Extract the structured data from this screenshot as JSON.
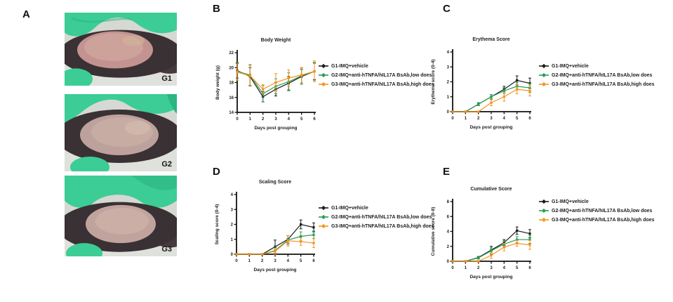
{
  "panels": {
    "a": "A",
    "b": "B",
    "c": "C",
    "d": "D",
    "e": "E"
  },
  "panelA": {
    "photos": [
      {
        "label": "G1",
        "skin": "#c29390",
        "skin_light": "#cfa49e"
      },
      {
        "label": "G2",
        "skin": "#bda19c",
        "skin_light": "#c9aea6"
      },
      {
        "label": "G3",
        "skin": "#c1a39d",
        "skin_light": "#cdb1a8"
      }
    ]
  },
  "colors": {
    "g1_series": "#1b1b1b",
    "g2_series": "#2a9d56",
    "g3_series": "#f7941e",
    "glove": "#3bcd95",
    "glove_shadow": "#2cb57f",
    "fur": "#3a3134",
    "fur_light": "#473a3d",
    "photo_bg": "#d6d8d3",
    "photo_bg_light": "#dfe1dc"
  },
  "chart_data": [
    {
      "id": "body_weight",
      "panel": "B",
      "type": "line",
      "title": "Body Weight",
      "xlabel": "Days post grouping",
      "ylabel": "Body weight (g)",
      "x": [
        0,
        1,
        2,
        3,
        4,
        5,
        6
      ],
      "ylim": [
        14,
        22
      ],
      "yticks": [
        14,
        16,
        18,
        20,
        22
      ],
      "legend_position": "right",
      "grid": false,
      "series": [
        {
          "name": "G1-IMQ+vehicle",
          "color": "#1b1b1b",
          "values": [
            19.6,
            18.8,
            16.1,
            17.1,
            17.9,
            18.8,
            19.5
          ],
          "errors": [
            1.0,
            1.2,
            0.7,
            0.9,
            0.9,
            1.0,
            1.1
          ]
        },
        {
          "name": "G2-IMQ+anti-hTNFA/hIL17A BsAb,low does",
          "color": "#2a9d56",
          "values": [
            19.5,
            19.0,
            16.5,
            17.5,
            18.1,
            18.9,
            19.5
          ],
          "errors": [
            1.2,
            1.4,
            1.1,
            1.0,
            1.2,
            1.1,
            1.2
          ]
        },
        {
          "name": "G3-IMQ+anti-hTNFA/hIL17A BsAb,high does",
          "color": "#f7941e",
          "values": [
            19.4,
            18.9,
            17.1,
            18.0,
            18.6,
            19.0,
            19.5
          ],
          "errors": [
            1.1,
            1.4,
            0.6,
            1.2,
            1.1,
            1.0,
            1.4
          ]
        }
      ]
    },
    {
      "id": "erythema",
      "panel": "C",
      "type": "line",
      "title": "Erythema Score",
      "xlabel": "Days post grouping",
      "ylabel": "Erythema score (0-4)",
      "x": [
        0,
        1,
        2,
        3,
        4,
        5,
        6
      ],
      "ylim": [
        0,
        4
      ],
      "yticks": [
        0,
        1,
        2,
        3,
        4
      ],
      "legend_position": "right",
      "grid": false,
      "series": [
        {
          "name": "G1-IMQ+vehicle",
          "color": "#1b1b1b",
          "values": [
            0,
            0,
            0.5,
            1.0,
            1.5,
            2.1,
            1.9
          ],
          "errors": [
            0,
            0,
            0.1,
            0.15,
            0.2,
            0.3,
            0.35
          ]
        },
        {
          "name": "G2-IMQ+anti-hTNFA/hIL17A BsAb,low does",
          "color": "#2a9d56",
          "values": [
            0,
            0,
            0.5,
            1.0,
            1.4,
            1.7,
            1.6
          ],
          "errors": [
            0,
            0,
            0.1,
            0.15,
            0.2,
            0.25,
            0.3
          ]
        },
        {
          "name": "G3-IMQ+anti-hTNFA/hIL17A BsAb,high does",
          "color": "#f7941e",
          "values": [
            0,
            0,
            0,
            0.6,
            1.0,
            1.5,
            1.4
          ],
          "errors": [
            0,
            0,
            0,
            0.2,
            0.3,
            0.3,
            0.35
          ]
        }
      ]
    },
    {
      "id": "scaling",
      "panel": "D",
      "type": "line",
      "title": "Scaling Score",
      "xlabel": "Days post grouping",
      "ylabel": "Scaling score (0-4)",
      "x": [
        0,
        1,
        2,
        3,
        4,
        5,
        6
      ],
      "ylim": [
        0,
        4
      ],
      "yticks": [
        0,
        1,
        2,
        3,
        4
      ],
      "legend_position": "right",
      "grid": false,
      "series": [
        {
          "name": "G1-IMQ+vehicle",
          "color": "#1b1b1b",
          "values": [
            0,
            0,
            0,
            0.5,
            1.0,
            2.0,
            1.8
          ],
          "errors": [
            0,
            0,
            0,
            0.45,
            0.25,
            0.3,
            0.3
          ]
        },
        {
          "name": "G2-IMQ+anti-hTNFA/hIL17A BsAb,low does",
          "color": "#2a9d56",
          "values": [
            0,
            0,
            0,
            0.25,
            0.95,
            1.2,
            1.3
          ],
          "errors": [
            0,
            0,
            0,
            0.25,
            0.3,
            0.3,
            0.25
          ]
        },
        {
          "name": "G3-IMQ+anti-hTNFA/hIL17A BsAb,high does",
          "color": "#f7941e",
          "values": [
            0,
            0,
            0,
            0.2,
            0.9,
            0.85,
            0.75
          ],
          "errors": [
            0,
            0,
            0,
            0.2,
            0.35,
            0.25,
            0.3
          ]
        }
      ]
    },
    {
      "id": "cumulative",
      "panel": "E",
      "type": "line",
      "title": "Cumulative Score",
      "xlabel": "Days post grouping",
      "ylabel": "Cumulative score (0-8)",
      "x": [
        0,
        1,
        2,
        3,
        4,
        5,
        6
      ],
      "ylim": [
        0,
        8
      ],
      "yticks": [
        0,
        2,
        4,
        6,
        8
      ],
      "legend_position": "right",
      "grid": false,
      "series": [
        {
          "name": "G1-IMQ+vehicle",
          "color": "#1b1b1b",
          "values": [
            0,
            0,
            0.5,
            1.5,
            2.5,
            4.1,
            3.7
          ],
          "errors": [
            0,
            0,
            0.15,
            0.5,
            0.4,
            0.5,
            0.55
          ]
        },
        {
          "name": "G2-IMQ+anti-hTNFA/hIL17A BsAb,low does",
          "color": "#2a9d56",
          "values": [
            0,
            0,
            0.45,
            1.4,
            2.3,
            2.9,
            2.9
          ],
          "errors": [
            0,
            0,
            0.15,
            0.4,
            0.45,
            0.4,
            0.5
          ]
        },
        {
          "name": "G3-IMQ+anti-hTNFA/hIL17A BsAb,high does",
          "color": "#f7941e",
          "values": [
            0,
            0,
            0,
            0.8,
            1.9,
            2.4,
            2.2
          ],
          "errors": [
            0,
            0,
            0.1,
            0.4,
            0.5,
            0.4,
            0.6
          ]
        }
      ]
    }
  ]
}
